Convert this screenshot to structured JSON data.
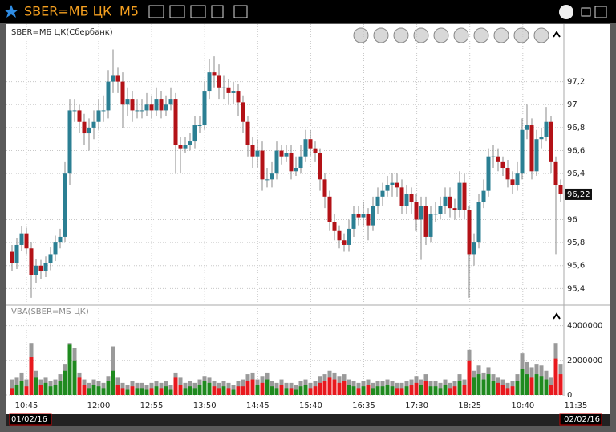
{
  "window": {
    "title": "SBER=МБ ЦК",
    "timeframe": "M5"
  },
  "time_axis": {
    "labels": [
      "10:45",
      "12:00",
      "12:55",
      "13:50",
      "14:45",
      "15:40",
      "16:35",
      "17:30",
      "18:25",
      "10:40",
      "11:35"
    ],
    "dates": [
      "01/02/16",
      "02/02/16",
      "02/02/16"
    ]
  },
  "chart_data": [
    {
      "type": "candlestick",
      "title": "SBER=МБ ЦК(Сбербанк)",
      "up_color": "#2b7f93",
      "down_color": "#b31217",
      "grid": true,
      "ylim": [
        95.27,
        97.7
      ],
      "yticks": [
        {
          "value": 97.2,
          "label": "97,2"
        },
        97,
        {
          "value": 96.8,
          "label": "96,8"
        },
        {
          "value": 96.6,
          "label": "96,6"
        },
        {
          "value": 96.4,
          "label": "96,4"
        },
        96,
        {
          "value": 95.8,
          "label": "95,8"
        },
        {
          "value": 95.6,
          "label": "95,6"
        },
        {
          "value": 95.4,
          "label": "95,4"
        }
      ],
      "last_price_label": "96,22",
      "open": [
        95.72,
        95.62,
        95.78,
        95.88,
        95.75,
        95.52,
        95.6,
        95.55,
        95.62,
        95.7,
        95.8,
        95.85,
        96.4,
        96.95,
        96.95,
        96.85,
        96.75,
        96.8,
        96.85,
        96.95,
        96.95,
        97.2,
        97.25,
        97.2,
        97.0,
        97.05,
        96.95,
        96.95,
        96.95,
        97.0,
        96.95,
        97.05,
        96.95,
        97.0,
        97.05,
        96.65,
        96.62,
        96.65,
        96.68,
        96.82,
        96.82,
        97.12,
        97.28,
        97.25,
        97.15,
        97.15,
        97.1,
        97.12,
        97.02,
        96.85,
        96.65,
        96.55,
        96.6,
        96.35,
        96.35,
        96.4,
        96.6,
        96.55,
        96.58,
        96.42,
        96.45,
        96.55,
        96.7,
        96.62,
        96.58,
        96.35,
        96.2,
        95.98,
        95.9,
        95.82,
        95.78,
        95.92,
        96.05,
        96.02,
        96.05,
        95.95,
        96.12,
        96.2,
        96.25,
        96.3,
        96.32,
        96.28,
        96.12,
        96.22,
        96.15,
        96.0,
        96.12,
        95.85,
        96.05,
        96.05,
        96.12,
        96.2,
        96.1,
        96.08,
        96.32,
        96.08,
        95.7,
        95.8,
        96.15,
        96.25,
        96.55,
        96.55,
        96.5,
        96.45,
        96.35,
        96.3,
        96.4,
        96.78,
        96.82,
        96.42,
        96.7,
        96.72,
        96.85,
        96.5,
        96.3
      ],
      "high": [
        95.78,
        95.84,
        95.94,
        95.93,
        95.8,
        95.66,
        95.65,
        95.68,
        95.76,
        95.86,
        95.92,
        96.5,
        97.05,
        97.05,
        97.0,
        96.92,
        96.88,
        96.95,
        97.05,
        97.08,
        97.3,
        97.48,
        97.32,
        97.28,
        97.15,
        97.12,
        97.05,
        97.05,
        97.1,
        97.08,
        97.15,
        97.12,
        97.08,
        97.15,
        97.1,
        96.72,
        96.72,
        96.75,
        96.9,
        96.9,
        97.2,
        97.4,
        97.42,
        97.35,
        97.25,
        97.22,
        97.2,
        97.18,
        97.08,
        96.9,
        96.72,
        96.7,
        96.68,
        96.45,
        96.5,
        96.68,
        96.65,
        96.65,
        96.65,
        96.55,
        96.65,
        96.78,
        96.78,
        96.68,
        96.62,
        96.4,
        96.25,
        96.05,
        95.95,
        95.88,
        96.0,
        96.12,
        96.12,
        96.15,
        96.1,
        96.2,
        96.28,
        96.32,
        96.38,
        96.4,
        96.4,
        96.35,
        96.3,
        96.28,
        96.22,
        96.2,
        96.2,
        96.12,
        96.15,
        96.2,
        96.28,
        96.28,
        96.18,
        96.42,
        96.4,
        96.12,
        95.88,
        96.22,
        96.35,
        96.62,
        96.65,
        96.62,
        96.55,
        96.52,
        96.42,
        96.5,
        96.88,
        97.0,
        96.88,
        96.78,
        96.8,
        96.98,
        96.9,
        96.55,
        96.35
      ],
      "low": [
        95.55,
        95.57,
        95.73,
        95.7,
        95.32,
        95.45,
        95.48,
        95.5,
        95.56,
        95.64,
        95.75,
        95.8,
        96.3,
        96.85,
        96.75,
        96.65,
        96.6,
        96.7,
        96.78,
        96.85,
        96.88,
        97.1,
        97.1,
        96.8,
        96.9,
        96.85,
        96.88,
        96.88,
        96.9,
        96.88,
        96.9,
        96.88,
        96.9,
        96.95,
        96.4,
        96.4,
        96.58,
        96.6,
        96.62,
        96.75,
        96.78,
        97.05,
        97.15,
        97.05,
        97.05,
        97.0,
        97.0,
        96.9,
        96.75,
        96.55,
        96.45,
        96.45,
        96.25,
        96.28,
        96.28,
        96.35,
        96.48,
        96.5,
        96.35,
        96.38,
        96.4,
        96.5,
        96.55,
        96.5,
        96.25,
        96.1,
        95.9,
        95.82,
        95.75,
        95.72,
        95.72,
        95.85,
        95.95,
        95.95,
        95.82,
        95.9,
        96.05,
        96.12,
        96.2,
        96.2,
        96.2,
        96.05,
        96.05,
        96.05,
        95.9,
        95.65,
        95.78,
        95.8,
        95.98,
        96.0,
        96.05,
        96.02,
        96.0,
        96.02,
        96.0,
        95.32,
        95.6,
        95.75,
        96.1,
        96.2,
        96.45,
        96.42,
        96.38,
        96.28,
        96.22,
        96.25,
        96.35,
        96.7,
        96.35,
        96.38,
        96.62,
        96.68,
        96.4,
        95.7,
        96.15
      ],
      "close": [
        95.62,
        95.78,
        95.88,
        95.75,
        95.52,
        95.6,
        95.55,
        95.62,
        95.7,
        95.8,
        95.85,
        96.4,
        96.95,
        96.95,
        96.85,
        96.75,
        96.8,
        96.85,
        96.95,
        96.95,
        97.2,
        97.25,
        97.2,
        97.0,
        97.05,
        96.95,
        96.95,
        96.95,
        97.0,
        96.95,
        97.05,
        96.95,
        97.0,
        97.05,
        96.65,
        96.62,
        96.65,
        96.68,
        96.82,
        96.82,
        97.12,
        97.28,
        97.25,
        97.15,
        97.15,
        97.1,
        97.12,
        97.02,
        96.85,
        96.65,
        96.55,
        96.6,
        96.35,
        96.35,
        96.4,
        96.6,
        96.55,
        96.58,
        96.42,
        96.45,
        96.55,
        96.7,
        96.62,
        96.58,
        96.35,
        96.2,
        95.98,
        95.9,
        95.82,
        95.78,
        95.92,
        96.05,
        96.02,
        96.05,
        95.95,
        96.12,
        96.2,
        96.25,
        96.3,
        96.32,
        96.28,
        96.12,
        96.22,
        96.15,
        96.0,
        96.12,
        95.85,
        96.05,
        96.05,
        96.12,
        96.2,
        96.1,
        96.08,
        96.32,
        96.08,
        95.7,
        95.8,
        96.15,
        96.25,
        96.55,
        96.55,
        96.5,
        96.45,
        96.35,
        96.3,
        96.4,
        96.78,
        96.82,
        96.42,
        96.7,
        96.72,
        96.85,
        96.5,
        96.3,
        96.22
      ]
    },
    {
      "type": "volume",
      "title": "VBA(SBER=МБ ЦК)",
      "up_color": "#1f8a1f",
      "down_color": "#e8191e",
      "total_color": "#9a9a9a",
      "grid": true,
      "ylim": [
        0,
        5000000
      ],
      "yticks": [
        4000000,
        2000000,
        0
      ],
      "values": [
        400000,
        600000,
        800000,
        500000,
        2200000,
        1000000,
        600000,
        700000,
        500000,
        600000,
        800000,
        1400000,
        2900000,
        2000000,
        1000000,
        600000,
        400000,
        600000,
        500000,
        400000,
        800000,
        1400000,
        600000,
        400000,
        300000,
        500000,
        400000,
        400000,
        300000,
        400000,
        500000,
        400000,
        500000,
        300000,
        1000000,
        600000,
        400000,
        500000,
        400000,
        600000,
        800000,
        700000,
        500000,
        400000,
        500000,
        400000,
        300000,
        500000,
        500000,
        800000,
        900000,
        600000,
        700000,
        900000,
        500000,
        400000,
        600000,
        400000,
        400000,
        300000,
        500000,
        600000,
        400000,
        500000,
        700000,
        800000,
        1000000,
        900000,
        700000,
        800000,
        600000,
        500000,
        400000,
        500000,
        600000,
        400000,
        500000,
        500000,
        600000,
        500000,
        400000,
        400000,
        500000,
        600000,
        700000,
        600000,
        800000,
        500000,
        500000,
        400000,
        600000,
        400000,
        500000,
        800000,
        600000,
        2000000,
        1000000,
        1200000,
        900000,
        1200000,
        800000,
        700000,
        600000,
        400000,
        500000,
        800000,
        1500000,
        1200000,
        1000000,
        1200000,
        1100000,
        900000,
        600000,
        2100000,
        1200000
      ],
      "totals": [
        900000,
        1000000,
        1300000,
        900000,
        3000000,
        1400000,
        900000,
        1000000,
        800000,
        900000,
        1200000,
        1800000,
        3000000,
        2700000,
        1300000,
        900000,
        700000,
        900000,
        800000,
        700000,
        1100000,
        2800000,
        1000000,
        700000,
        600000,
        800000,
        700000,
        700000,
        600000,
        700000,
        800000,
        700000,
        800000,
        600000,
        1300000,
        1000000,
        700000,
        800000,
        700000,
        900000,
        1100000,
        1000000,
        800000,
        700000,
        800000,
        700000,
        600000,
        800000,
        900000,
        1200000,
        1300000,
        900000,
        1100000,
        1300000,
        800000,
        700000,
        900000,
        700000,
        700000,
        600000,
        800000,
        900000,
        700000,
        800000,
        1100000,
        1200000,
        1400000,
        1300000,
        1100000,
        1200000,
        900000,
        800000,
        700000,
        800000,
        900000,
        700000,
        800000,
        800000,
        900000,
        800000,
        700000,
        700000,
        800000,
        900000,
        1100000,
        900000,
        1200000,
        800000,
        800000,
        700000,
        900000,
        700000,
        800000,
        1200000,
        900000,
        2600000,
        1400000,
        1700000,
        1300000,
        1600000,
        1200000,
        1000000,
        900000,
        700000,
        800000,
        1200000,
        2400000,
        1900000,
        1600000,
        1800000,
        1700000,
        1400000,
        1000000,
        3000000,
        1800000
      ]
    }
  ]
}
